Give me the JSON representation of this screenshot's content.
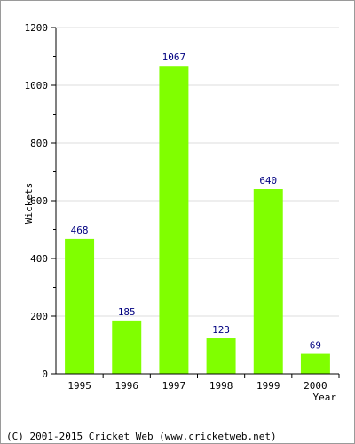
{
  "chart_data": {
    "type": "bar",
    "categories": [
      "1995",
      "1996",
      "1997",
      "1998",
      "1999",
      "2000"
    ],
    "values": [
      468,
      185,
      1067,
      123,
      640,
      69
    ],
    "title": "",
    "xlabel": "Year",
    "ylabel": "Wickets",
    "ylim": [
      0,
      1200
    ],
    "yticks": [
      0,
      200,
      400,
      600,
      800,
      1000,
      1200
    ],
    "grid": true,
    "legend": "none",
    "colors": {
      "bar": "#80ff00",
      "value_label": "#000080",
      "grid": "#dddddd",
      "axis": "#000000"
    }
  },
  "footer": {
    "copyright": "(C) 2001-2015 Cricket Web (www.cricketweb.net)"
  }
}
